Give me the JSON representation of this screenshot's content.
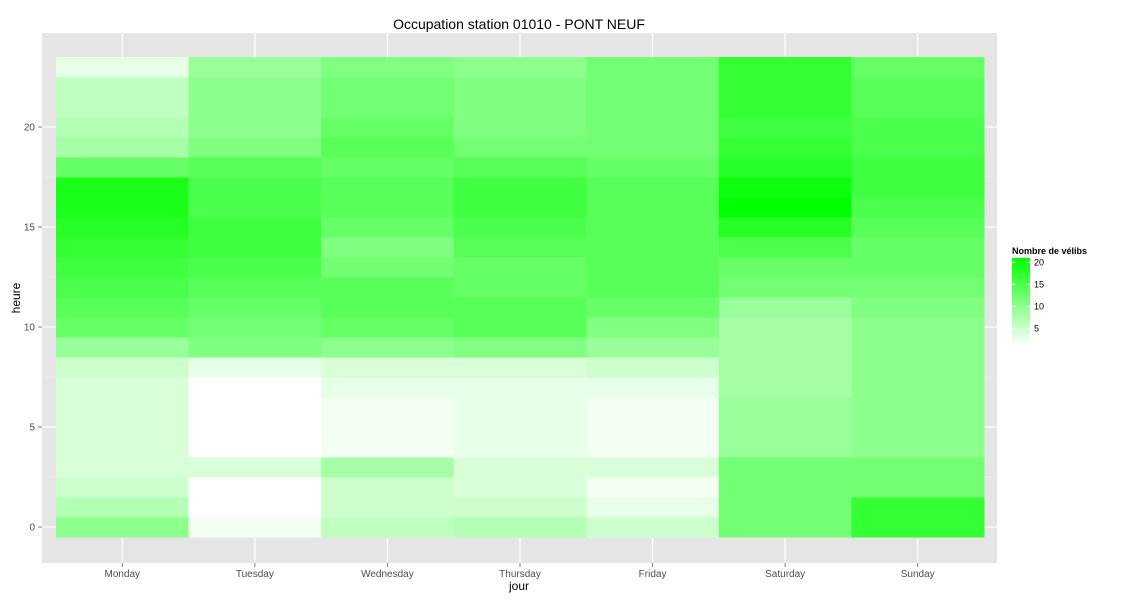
{
  "chart_data": {
    "type": "heatmap",
    "title": "Occupation station 01010 - PONT NEUF",
    "xlabel": "jour",
    "ylabel": "heure",
    "x_categories": [
      "Monday",
      "Tuesday",
      "Wednesday",
      "Thursday",
      "Friday",
      "Saturday",
      "Sunday"
    ],
    "y_hours": [
      0,
      1,
      2,
      3,
      4,
      5,
      6,
      7,
      8,
      9,
      10,
      11,
      12,
      13,
      14,
      15,
      16,
      17,
      18,
      19,
      20,
      21,
      22,
      23
    ],
    "y_ticks": [
      0,
      5,
      10,
      15,
      20
    ],
    "ylim": [
      -0.5,
      23.5
    ],
    "grid": true,
    "legend": {
      "title": "Nombre de vélibs",
      "position": "right",
      "ticks": [
        5,
        10,
        15,
        20
      ],
      "min": 1,
      "max": 21,
      "color_low": "#ffffff",
      "color_high": "#00ff00"
    },
    "values": [
      [
        10,
        7,
        5,
        4,
        4,
        4,
        4,
        4,
        5,
        9,
        13,
        14,
        15,
        16,
        17,
        18,
        19,
        19,
        13,
        8,
        7,
        6,
        6,
        3
      ],
      [
        2,
        1,
        1,
        4,
        0,
        0,
        0,
        1,
        3,
        11,
        12,
        13,
        14,
        15,
        16,
        16,
        15,
        15,
        14,
        11,
        10,
        10,
        10,
        9
      ],
      [
        6,
        5,
        5,
        8,
        2,
        2,
        2,
        3,
        4,
        10,
        13,
        14,
        14,
        12,
        11,
        13,
        14,
        14,
        13,
        14,
        13,
        12,
        12,
        11
      ],
      [
        7,
        5,
        4,
        4,
        3,
        3,
        3,
        3,
        4,
        11,
        14,
        14,
        13,
        13,
        14,
        15,
        16,
        16,
        14,
        12,
        11,
        11,
        11,
        10
      ],
      [
        5,
        3,
        2,
        4,
        2,
        2,
        2,
        3,
        5,
        9,
        11,
        13,
        14,
        14,
        14,
        14,
        14,
        14,
        13,
        12,
        12,
        12,
        12,
        12
      ],
      [
        12,
        12,
        12,
        12,
        9,
        9,
        9,
        8,
        8,
        8,
        8,
        9,
        12,
        13,
        15,
        18,
        21,
        20,
        18,
        17,
        16,
        17,
        17,
        17
      ],
      [
        17,
        17,
        12,
        12,
        10,
        10,
        10,
        10,
        10,
        10,
        10,
        11,
        12,
        13,
        13,
        14,
        15,
        16,
        16,
        15,
        15,
        14,
        14,
        13
      ]
    ]
  }
}
